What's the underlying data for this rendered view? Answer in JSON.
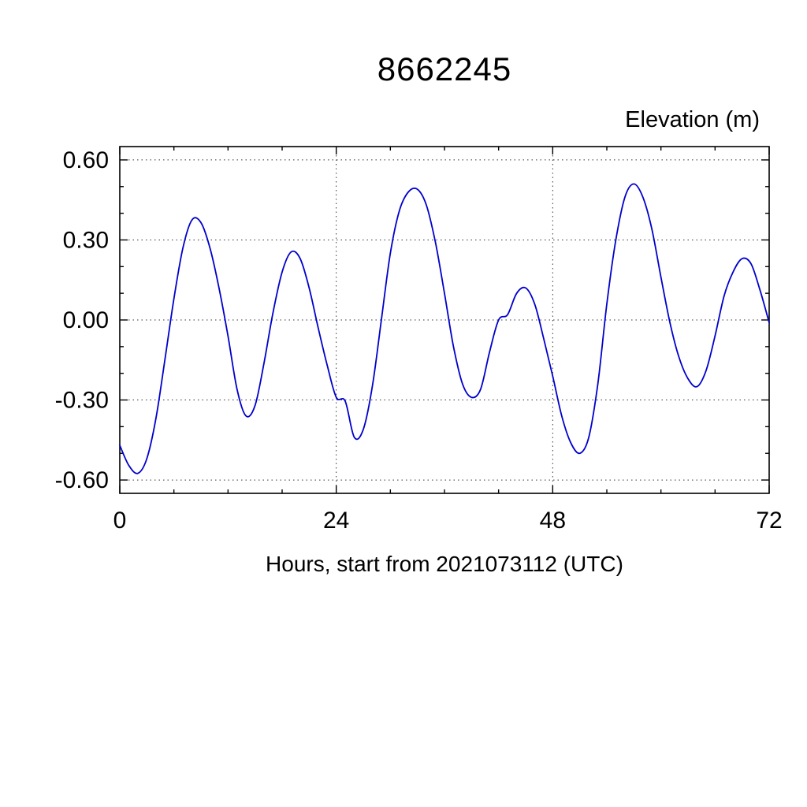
{
  "page": {
    "background_color": "#ffffff"
  },
  "chart_data": {
    "type": "line",
    "title": "8662245",
    "xlabel": "Hours, start from 2021073112 (UTC)",
    "ylabel": "Elevation (m)",
    "xlim": [
      0,
      72
    ],
    "ylim": [
      -0.65,
      0.65
    ],
    "xticks_major": [
      0,
      24,
      48,
      72
    ],
    "xtick_labels": [
      "0",
      "24",
      "48",
      "72"
    ],
    "xticks_minor": [
      6,
      12,
      18,
      30,
      36,
      42,
      54,
      60,
      66
    ],
    "xgridlines": [
      24,
      48
    ],
    "yticks_major": [
      -0.6,
      -0.3,
      0,
      0.3,
      0.6
    ],
    "ytick_labels": [
      "-0.60",
      "-0.30",
      "0.00",
      "0.30",
      "0.60"
    ],
    "yticks_minor": [
      -0.5,
      -0.4,
      -0.2,
      -0.1,
      0.1,
      0.2,
      0.4,
      0.5
    ],
    "ygridlines": [
      -0.6,
      -0.3,
      0,
      0.3,
      0.6
    ],
    "grid": "dotted",
    "legend": "none",
    "line_color": "#0000cc",
    "axis_color": "#000000",
    "grid_color": "#333333",
    "series": [
      {
        "name": "elevation",
        "x": [
          0,
          1,
          2,
          3,
          4,
          5,
          6,
          7,
          8,
          9,
          10,
          11,
          12,
          13,
          14,
          15,
          16,
          17,
          18,
          19,
          20,
          21,
          22,
          23,
          24,
          25,
          26,
          27,
          28,
          29,
          30,
          31,
          32,
          33,
          34,
          35,
          36,
          37,
          38,
          39,
          40,
          41,
          42,
          43,
          44,
          45,
          46,
          47,
          48,
          49,
          50,
          51,
          52,
          53,
          54,
          55,
          56,
          57,
          58,
          59,
          60,
          61,
          62,
          63,
          64,
          65,
          66,
          67,
          68,
          69,
          70,
          71,
          72
        ],
        "y": [
          -0.47,
          -0.545,
          -0.575,
          -0.52,
          -0.37,
          -0.15,
          0.08,
          0.27,
          0.375,
          0.365,
          0.27,
          0.12,
          -0.06,
          -0.26,
          -0.36,
          -0.32,
          -0.16,
          0.03,
          0.18,
          0.255,
          0.23,
          0.12,
          -0.03,
          -0.17,
          -0.29,
          -0.305,
          -0.44,
          -0.41,
          -0.25,
          0.0,
          0.25,
          0.41,
          0.48,
          0.49,
          0.43,
          0.29,
          0.1,
          -0.1,
          -0.24,
          -0.29,
          -0.26,
          -0.12,
          0.0,
          0.02,
          0.1,
          0.12,
          0.06,
          -0.07,
          -0.21,
          -0.36,
          -0.46,
          -0.5,
          -0.44,
          -0.24,
          0.06,
          0.3,
          0.46,
          0.51,
          0.46,
          0.34,
          0.16,
          -0.01,
          -0.14,
          -0.22,
          -0.25,
          -0.19,
          -0.06,
          0.09,
          0.18,
          0.23,
          0.21,
          0.11,
          -0.01
        ]
      }
    ]
  }
}
